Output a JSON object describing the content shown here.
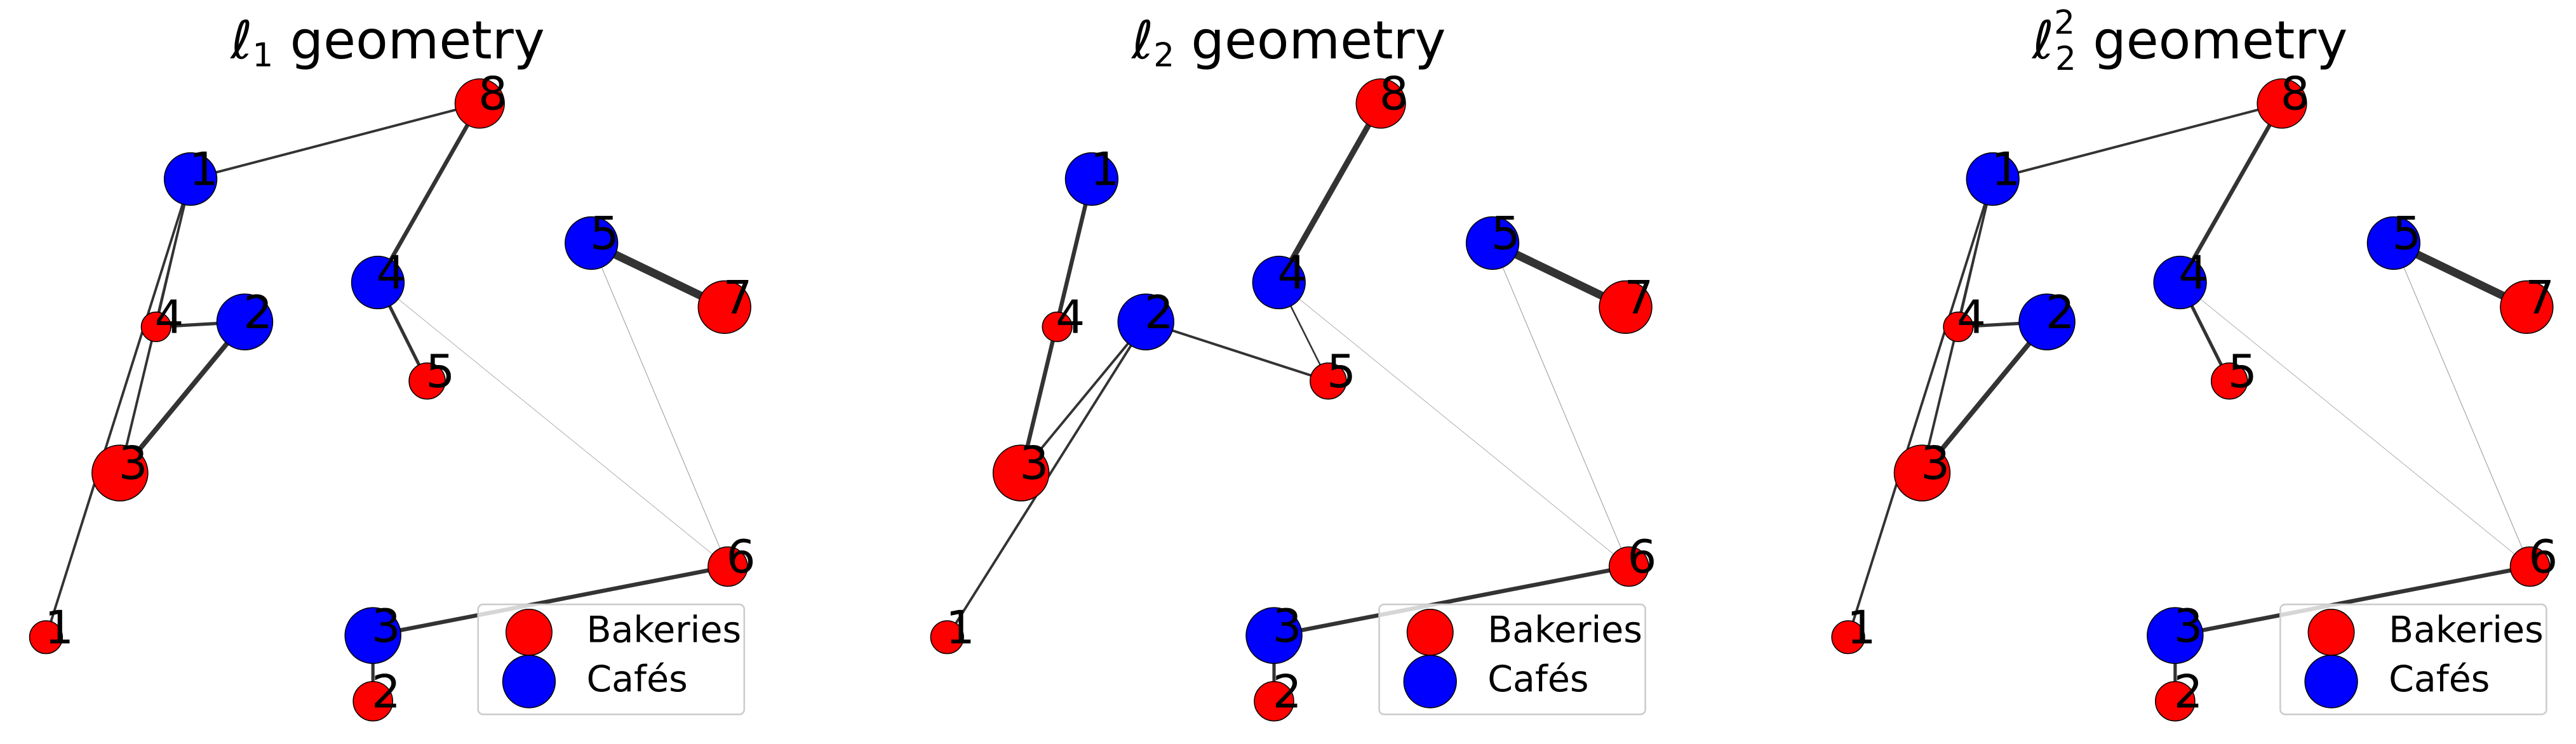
{
  "chart_data": [
    {
      "type": "transport",
      "title": {
        "symbol": "ℓ",
        "sub": "1",
        "rest": " geometry"
      },
      "xlim": [
        0,
        480
      ],
      "ylim": [
        0,
        450
      ],
      "bakeries": {
        "name": "Bakeries",
        "color": "#ff0000",
        "labels": [
          "1",
          "2",
          "3",
          "4",
          "5",
          "6",
          "7",
          "8"
        ],
        "x": [
          28,
          227,
          73,
          95,
          260,
          443,
          441,
          292
        ],
        "y": [
          62,
          23,
          162,
          251,
          218,
          105,
          263,
          387
        ],
        "sizes": [
          10,
          12,
          17,
          9,
          11,
          12,
          16,
          15
        ]
      },
      "cafes": {
        "name": "Cafés",
        "color": "#0000ff",
        "labels": [
          "1",
          "2",
          "3",
          "4",
          "5"
        ],
        "x": [
          116,
          149,
          227,
          230,
          360
        ],
        "y": [
          341,
          254,
          63,
          278,
          302
        ],
        "sizes": [
          16,
          17,
          17,
          16,
          16
        ]
      },
      "edges": [
        {
          "cafe": 1,
          "bakery": 8,
          "weight": 1.5
        },
        {
          "cafe": 1,
          "bakery": 1,
          "weight": 1.5
        },
        {
          "cafe": 1,
          "bakery": 3,
          "weight": 1.5
        },
        {
          "cafe": 1,
          "bakery": 4,
          "weight": 1
        },
        {
          "cafe": 2,
          "bakery": 4,
          "weight": 2
        },
        {
          "cafe": 2,
          "bakery": 3,
          "weight": 3
        },
        {
          "cafe": 4,
          "bakery": 8,
          "weight": 2.5
        },
        {
          "cafe": 4,
          "bakery": 5,
          "weight": 2
        },
        {
          "cafe": 4,
          "bakery": 6,
          "weight": 0.3
        },
        {
          "cafe": 5,
          "bakery": 7,
          "weight": 5
        },
        {
          "cafe": 5,
          "bakery": 6,
          "weight": 0.4
        },
        {
          "cafe": 3,
          "bakery": 6,
          "weight": 2.5
        },
        {
          "cafe": 3,
          "bakery": 2,
          "weight": 2
        }
      ]
    },
    {
      "type": "transport",
      "title": {
        "symbol": "ℓ",
        "sub": "2",
        "rest": " geometry"
      },
      "xlim": [
        0,
        480
      ],
      "ylim": [
        0,
        450
      ],
      "bakeries": {
        "name": "Bakeries",
        "color": "#ff0000",
        "labels": [
          "1",
          "2",
          "3",
          "4",
          "5",
          "6",
          "7",
          "8"
        ],
        "x": [
          28,
          227,
          73,
          95,
          260,
          443,
          441,
          292
        ],
        "y": [
          62,
          23,
          162,
          251,
          218,
          105,
          263,
          387
        ],
        "sizes": [
          10,
          12,
          17,
          9,
          11,
          12,
          16,
          15
        ]
      },
      "cafes": {
        "name": "Cafés",
        "color": "#0000ff",
        "labels": [
          "1",
          "2",
          "3",
          "4",
          "5"
        ],
        "x": [
          116,
          149,
          227,
          230,
          360
        ],
        "y": [
          341,
          254,
          63,
          278,
          302
        ],
        "sizes": [
          16,
          17,
          17,
          16,
          16
        ]
      },
      "edges": [
        {
          "cafe": 1,
          "bakery": 3,
          "weight": 2.5
        },
        {
          "cafe": 1,
          "bakery": 4,
          "weight": 1
        },
        {
          "cafe": 2,
          "bakery": 3,
          "weight": 1.5
        },
        {
          "cafe": 2,
          "bakery": 1,
          "weight": 1.5
        },
        {
          "cafe": 2,
          "bakery": 5,
          "weight": 1.5
        },
        {
          "cafe": 4,
          "bakery": 8,
          "weight": 3.5
        },
        {
          "cafe": 4,
          "bakery": 5,
          "weight": 1
        },
        {
          "cafe": 4,
          "bakery": 6,
          "weight": 0.3
        },
        {
          "cafe": 5,
          "bakery": 7,
          "weight": 5
        },
        {
          "cafe": 5,
          "bakery": 6,
          "weight": 0.4
        },
        {
          "cafe": 3,
          "bakery": 6,
          "weight": 2.5
        },
        {
          "cafe": 3,
          "bakery": 2,
          "weight": 2
        }
      ]
    },
    {
      "type": "transport",
      "title": {
        "symbol": "ℓ",
        "sub": "2",
        "sup": "2",
        "rest": " geometry"
      },
      "xlim": [
        0,
        480
      ],
      "ylim": [
        0,
        450
      ],
      "bakeries": {
        "name": "Bakeries",
        "color": "#ff0000",
        "labels": [
          "1",
          "2",
          "3",
          "4",
          "5",
          "6",
          "7",
          "8"
        ],
        "x": [
          28,
          227,
          73,
          95,
          260,
          443,
          441,
          292
        ],
        "y": [
          62,
          23,
          162,
          251,
          218,
          105,
          263,
          387
        ],
        "sizes": [
          10,
          12,
          17,
          9,
          11,
          12,
          16,
          15
        ]
      },
      "cafes": {
        "name": "Cafés",
        "color": "#0000ff",
        "labels": [
          "1",
          "2",
          "3",
          "4",
          "5"
        ],
        "x": [
          116,
          149,
          227,
          230,
          360
        ],
        "y": [
          341,
          254,
          63,
          278,
          302
        ],
        "sizes": [
          16,
          17,
          17,
          16,
          16
        ]
      },
      "edges": [
        {
          "cafe": 1,
          "bakery": 8,
          "weight": 1.5
        },
        {
          "cafe": 1,
          "bakery": 1,
          "weight": 1.5
        },
        {
          "cafe": 1,
          "bakery": 3,
          "weight": 1.5
        },
        {
          "cafe": 1,
          "bakery": 4,
          "weight": 1
        },
        {
          "cafe": 2,
          "bakery": 4,
          "weight": 2
        },
        {
          "cafe": 2,
          "bakery": 3,
          "weight": 3
        },
        {
          "cafe": 4,
          "bakery": 8,
          "weight": 2.5
        },
        {
          "cafe": 4,
          "bakery": 5,
          "weight": 2
        },
        {
          "cafe": 4,
          "bakery": 6,
          "weight": 0.3
        },
        {
          "cafe": 5,
          "bakery": 7,
          "weight": 5
        },
        {
          "cafe": 5,
          "bakery": 6,
          "weight": 0.4
        },
        {
          "cafe": 3,
          "bakery": 6,
          "weight": 2.5
        },
        {
          "cafe": 3,
          "bakery": 2,
          "weight": 2
        }
      ]
    }
  ]
}
